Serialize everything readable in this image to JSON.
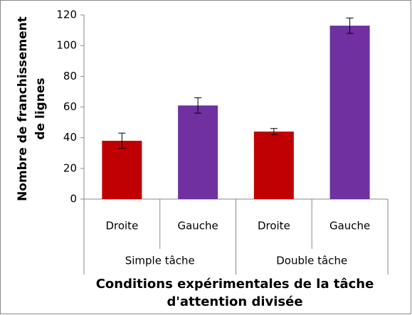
{
  "chart_data": {
    "type": "bar",
    "y_label": "Nombre de franchissement de lignes",
    "x_label": "Conditions expérimentales de la tâche d'attention divisée",
    "categories": [
      "Droite",
      "Gauche",
      "Droite",
      "Gauche"
    ],
    "group_labels": [
      "Simple tâche",
      "Double tâche"
    ],
    "values": [
      38,
      61,
      44,
      113
    ],
    "errors": [
      5,
      5,
      2,
      5
    ],
    "colors": [
      "#c00000",
      "#7030a0",
      "#c00000",
      "#7030a0"
    ],
    "ylim": [
      0,
      120
    ],
    "yticks": [
      0,
      20,
      40,
      60,
      80,
      100,
      120
    ],
    "grid": false
  }
}
